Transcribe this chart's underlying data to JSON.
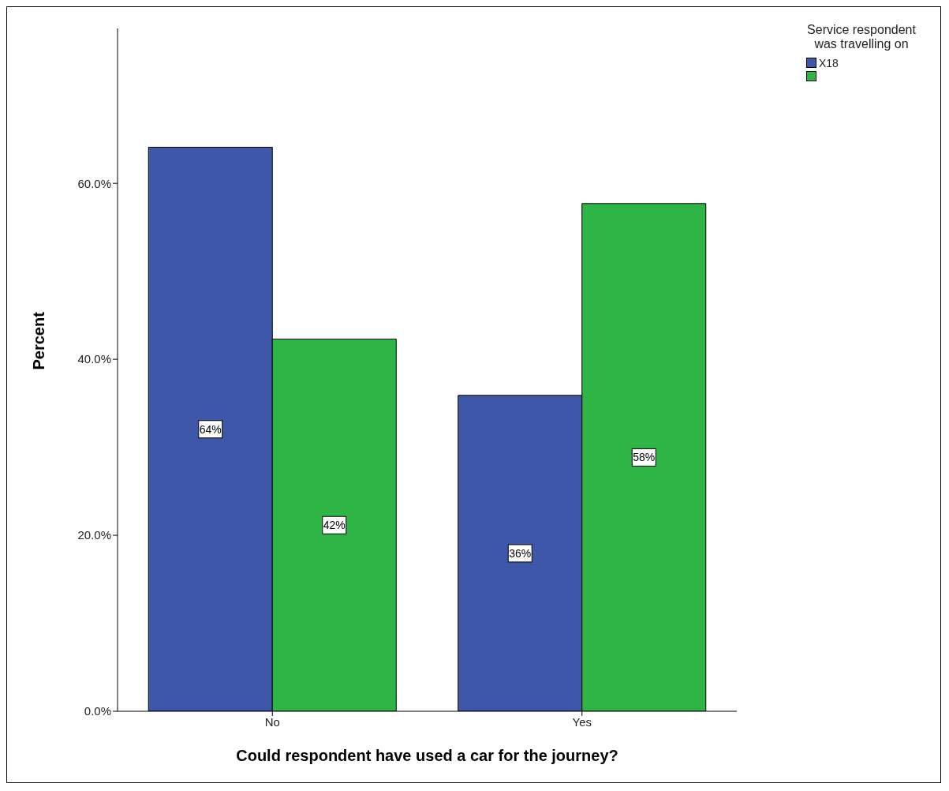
{
  "chart_data": {
    "type": "bar",
    "xlabel": "Could respondent have used a car for the journey?",
    "ylabel": "Percent",
    "legend_title": "Service respondent was travelling on",
    "categories": [
      "No",
      "Yes"
    ],
    "series": [
      {
        "name": "X18",
        "color": "#3f57a8",
        "values": [
          64.1,
          35.9
        ],
        "value_labels": [
          "64%",
          "36%"
        ]
      },
      {
        "color": "#2fb545",
        "values": [
          42.3,
          57.7
        ],
        "value_labels": [
          "42%",
          "58%"
        ]
      }
    ],
    "ylim": [
      0,
      77.6
    ],
    "yticks": [
      {
        "value": 0,
        "label": "0.0%"
      },
      {
        "value": 20,
        "label": "20.0%"
      },
      {
        "value": 40,
        "label": "40.0%"
      },
      {
        "value": 60,
        "label": "60.0%"
      }
    ],
    "grid": false,
    "legend": "top right"
  }
}
